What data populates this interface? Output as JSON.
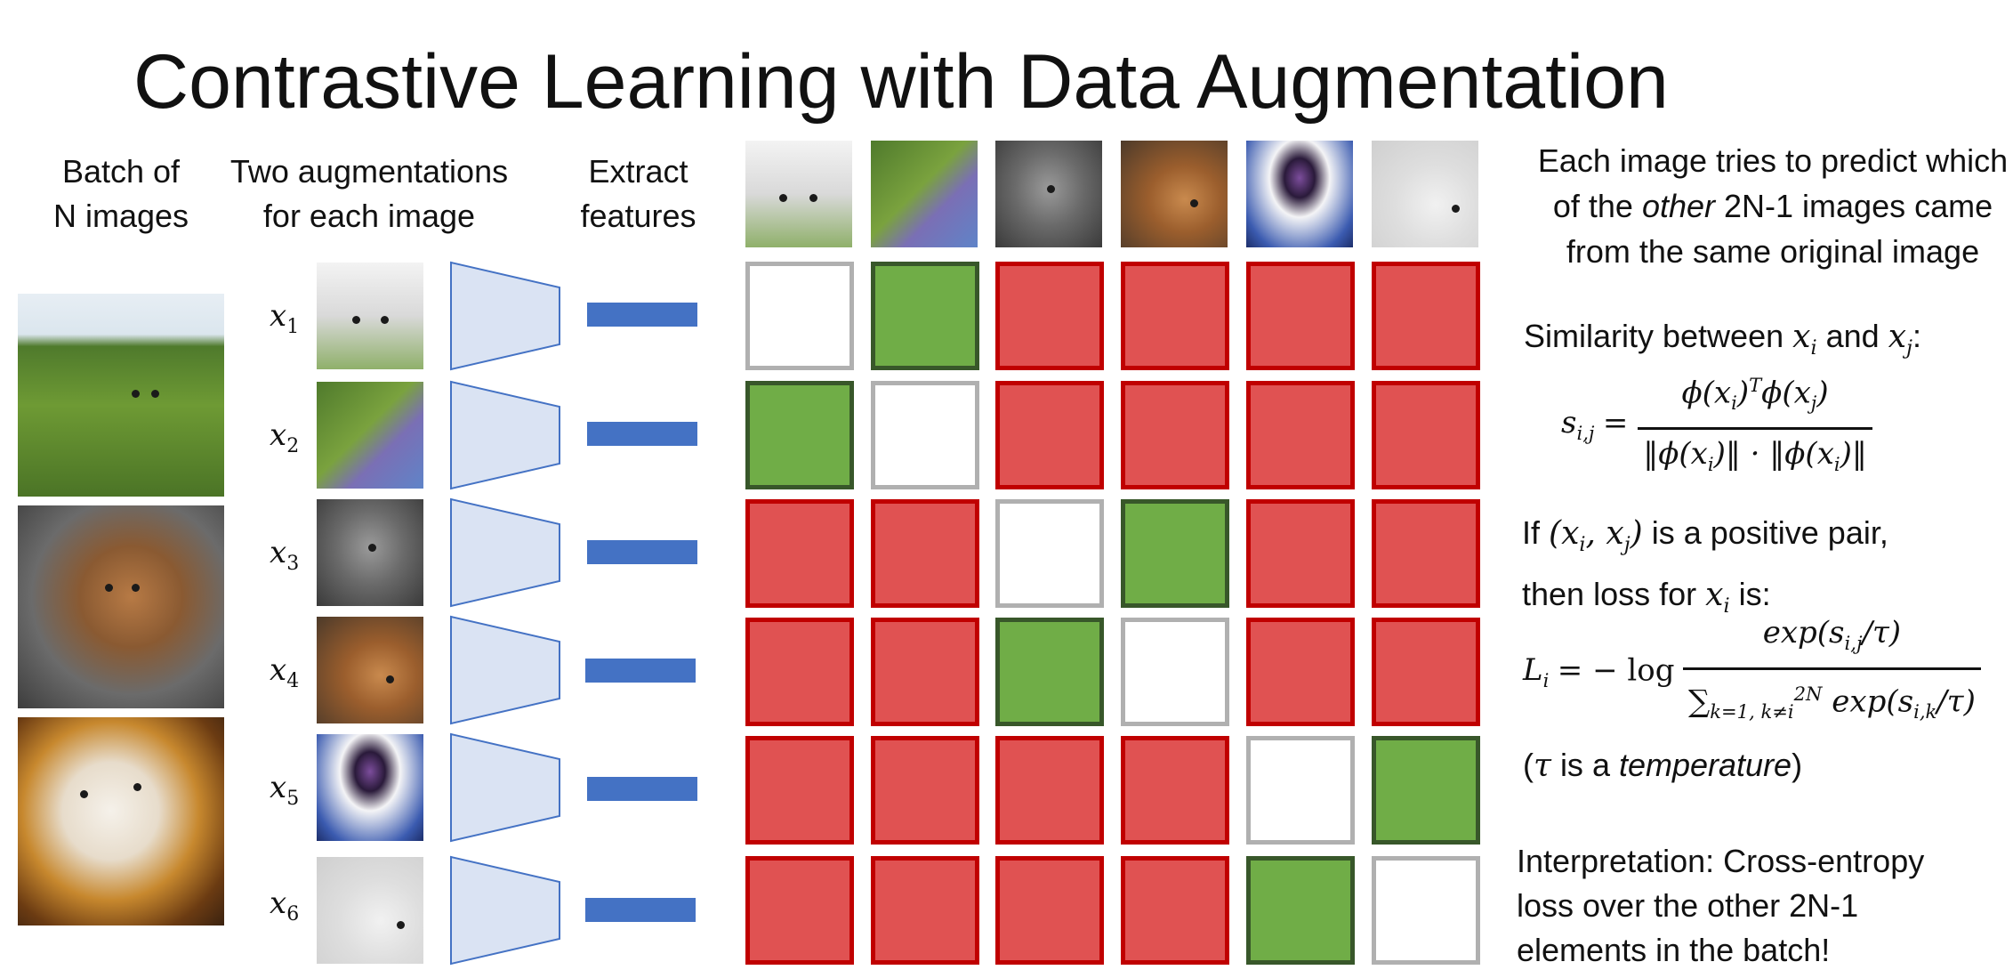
{
  "title": "Contrastive Learning with Data Augmentation",
  "columns": {
    "batch": [
      "Batch of",
      "N images"
    ],
    "augment": [
      "Two augmentations",
      "for each image"
    ],
    "extract": [
      "Extract",
      "features"
    ]
  },
  "images": {
    "batch": [
      "kitten",
      "monkey",
      "dog"
    ],
    "augmented": [
      "kitten-aug-1",
      "kitten-aug-2",
      "monkey-aug-1",
      "monkey-aug-2",
      "dog-aug-1",
      "dog-aug-2"
    ]
  },
  "x_labels": [
    {
      "var": "x",
      "sub": "1"
    },
    {
      "var": "x",
      "sub": "2"
    },
    {
      "var": "x",
      "sub": "3"
    },
    {
      "var": "x",
      "sub": "4"
    },
    {
      "var": "x",
      "sub": "5"
    },
    {
      "var": "x",
      "sub": "6"
    }
  ],
  "matrix": {
    "legend": {
      "positive": "green",
      "negative": "red",
      "self": "white"
    },
    "cells": [
      [
        "self",
        "pos",
        "neg",
        "neg",
        "neg",
        "neg"
      ],
      [
        "pos",
        "self",
        "neg",
        "neg",
        "neg",
        "neg"
      ],
      [
        "neg",
        "neg",
        "self",
        "pos",
        "neg",
        "neg"
      ],
      [
        "neg",
        "neg",
        "pos",
        "self",
        "neg",
        "neg"
      ],
      [
        "neg",
        "neg",
        "neg",
        "neg",
        "self",
        "pos"
      ],
      [
        "neg",
        "neg",
        "neg",
        "neg",
        "pos",
        "self"
      ]
    ]
  },
  "colors": {
    "positive_fill": "#70ad47",
    "positive_border": "#38572a",
    "negative_fill": "#e05252",
    "negative_border": "#c00000",
    "self_border": "#b0b0b0",
    "feature_bar": "#4472c4",
    "encoder_fill": "#dae3f3",
    "encoder_stroke": "#4472c4"
  },
  "right": {
    "intro": [
      "Each image tries to predict which",
      "of the",
      "other",
      "2N-1 images came",
      "from the same original image"
    ],
    "similarity_label": "Similarity between",
    "similarity_and": "and",
    "loss_if": "If",
    "loss_is_pos": "is a positive pair,",
    "loss_then": "then loss for",
    "loss_is": "is:",
    "temp_prefix": "(",
    "temp_is": "is a",
    "temp_word": "temperature",
    "temp_suffix": ")",
    "interpretation": [
      "Interpretation: Cross-entropy",
      "loss over the other 2N-1",
      "elements in the batch!"
    ]
  }
}
